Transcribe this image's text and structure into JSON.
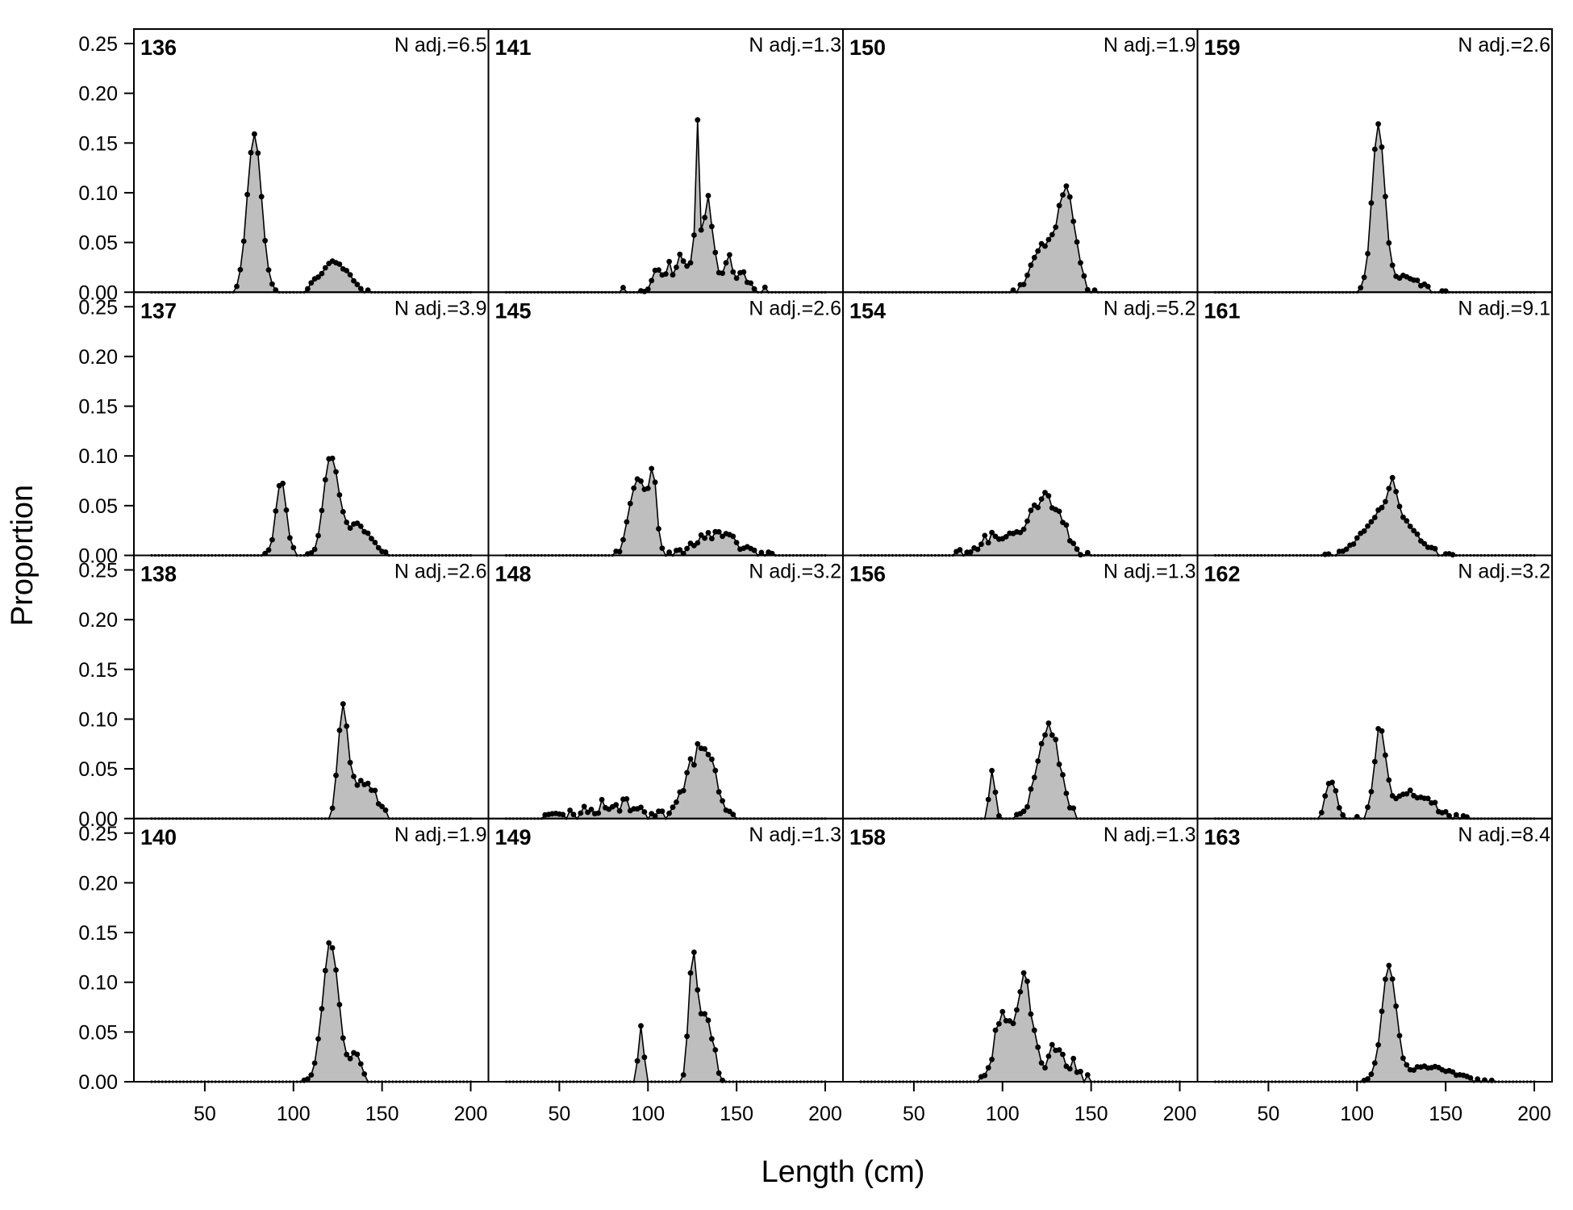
{
  "chart_data": {
    "type": "area",
    "xlabel": "Length (cm)",
    "ylabel": "Proportion",
    "xlim": [
      10,
      210
    ],
    "ylim": [
      0,
      0.25
    ],
    "x_ticks": [
      50,
      100,
      150,
      200
    ],
    "y_ticks": [
      0.0,
      0.05,
      0.1,
      0.15,
      0.2,
      0.25
    ],
    "y_tick_labels": [
      "0.00",
      "0.05",
      "0.10",
      "0.15",
      "0.20",
      "0.25"
    ],
    "bin_range": [
      20,
      200
    ],
    "bin_width": 2,
    "fill_color": "#bebebe",
    "line_color": "#000000",
    "panels": [
      {
        "id": "136",
        "n_label": "N adj.=6.5",
        "peaks": [
          [
            78,
            0.16,
            4
          ],
          [
            123,
            0.03,
            8
          ]
        ],
        "noise": 0.002
      },
      {
        "id": "141",
        "n_label": "N adj.=1.3",
        "peaks": [
          [
            128,
            0.15,
            1
          ],
          [
            134,
            0.08,
            2
          ],
          [
            120,
            0.03,
            12
          ],
          [
            145,
            0.025,
            8
          ]
        ],
        "noise": 0.01
      },
      {
        "id": "150",
        "n_label": "N adj.=1.9",
        "peaks": [
          [
            136,
            0.1,
            5
          ],
          [
            122,
            0.045,
            6
          ]
        ],
        "noise": 0.004
      },
      {
        "id": "159",
        "n_label": "N adj.=2.6",
        "peaks": [
          [
            112,
            0.163,
            3.5
          ],
          [
            125,
            0.015,
            10
          ]
        ],
        "noise": 0.002
      },
      {
        "id": "137",
        "n_label": "N adj.=3.9",
        "peaks": [
          [
            93,
            0.075,
            3
          ],
          [
            121,
            0.095,
            4
          ],
          [
            135,
            0.03,
            8
          ]
        ],
        "noise": 0.003
      },
      {
        "id": "145",
        "n_label": "N adj.=2.6",
        "peaks": [
          [
            95,
            0.08,
            5
          ],
          [
            103,
            0.07,
            2
          ],
          [
            138,
            0.02,
            12
          ]
        ],
        "noise": 0.005
      },
      {
        "id": "154",
        "n_label": "N adj.=5.2",
        "peaks": [
          [
            125,
            0.055,
            9
          ],
          [
            100,
            0.02,
            12
          ]
        ],
        "noise": 0.006
      },
      {
        "id": "161",
        "n_label": "N adj.=9.1",
        "peaks": [
          [
            118,
            0.05,
            12
          ],
          [
            120,
            0.03,
            2
          ]
        ],
        "noise": 0.002
      },
      {
        "id": "138",
        "n_label": "N adj.=2.6",
        "peaks": [
          [
            128,
            0.105,
            3
          ],
          [
            140,
            0.04,
            6
          ]
        ],
        "noise": 0.006
      },
      {
        "id": "148",
        "n_label": "N adj.=3.2",
        "peaks": [
          [
            130,
            0.07,
            8
          ],
          [
            80,
            0.015,
            15
          ]
        ],
        "noise": 0.008
      },
      {
        "id": "156",
        "n_label": "N adj.=1.3",
        "peaks": [
          [
            126,
            0.095,
            6
          ],
          [
            94,
            0.05,
            1.5
          ]
        ],
        "noise": 0.006
      },
      {
        "id": "162",
        "n_label": "N adj.=3.2",
        "peaks": [
          [
            113,
            0.085,
            3
          ],
          [
            85,
            0.04,
            3
          ],
          [
            130,
            0.025,
            12
          ]
        ],
        "noise": 0.004
      },
      {
        "id": "140",
        "n_label": "N adj.=1.9",
        "peaks": [
          [
            121,
            0.14,
            4.5
          ],
          [
            135,
            0.03,
            3
          ]
        ],
        "noise": 0.003
      },
      {
        "id": "149",
        "n_label": "N adj.=1.3",
        "peaks": [
          [
            125,
            0.1,
            2
          ],
          [
            131,
            0.07,
            5
          ],
          [
            96,
            0.06,
            1.5
          ]
        ],
        "noise": 0.007
      },
      {
        "id": "158",
        "n_label": "N adj.=1.3",
        "peaks": [
          [
            112,
            0.1,
            4
          ],
          [
            100,
            0.07,
            4
          ],
          [
            130,
            0.03,
            8
          ]
        ],
        "noise": 0.01
      },
      {
        "id": "163",
        "n_label": "N adj.=8.4",
        "peaks": [
          [
            118,
            0.113,
            4
          ],
          [
            140,
            0.015,
            14
          ]
        ],
        "noise": 0.002
      }
    ]
  }
}
